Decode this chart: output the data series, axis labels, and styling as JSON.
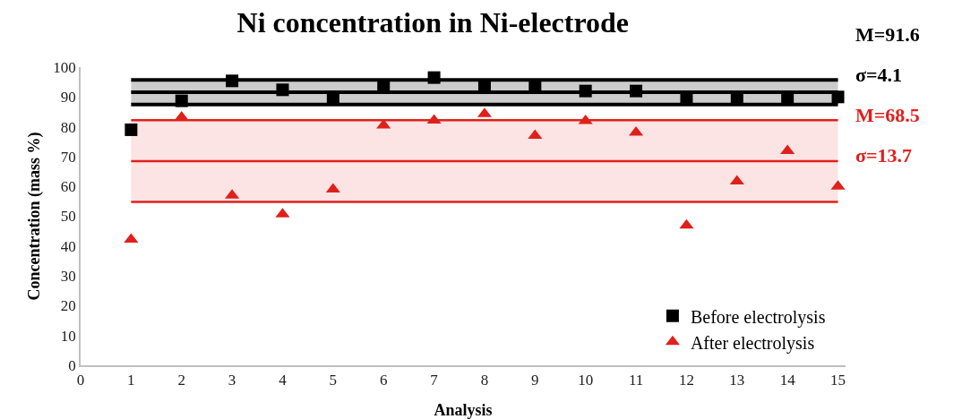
{
  "chart_data": {
    "type": "scatter",
    "title": "Ni concentration in Ni-electrode",
    "xlabel": "Analysis",
    "ylabel": "Concentration (mass %)",
    "x": [
      1,
      2,
      3,
      4,
      5,
      6,
      7,
      8,
      9,
      10,
      11,
      12,
      13,
      14,
      15
    ],
    "series": [
      {
        "name": "Before electrolysis",
        "color": "#000000",
        "marker": "square",
        "values": [
          79,
          88.7,
          95.4,
          92.4,
          89.8,
          93.7,
          96.5,
          94,
          94,
          92,
          92,
          90,
          90,
          89.7,
          90
        ]
      },
      {
        "name": "After electrolysis",
        "color": "#e0201b",
        "marker": "triangle",
        "values": [
          42.2,
          83.2,
          57,
          50.7,
          59,
          80.5,
          82.1,
          84.3,
          77,
          82,
          78.1,
          46.9,
          61.7,
          71.9,
          60
        ]
      }
    ],
    "ref_lines": [
      {
        "axis": "y",
        "value": 91.6,
        "label": "M=91.6",
        "color": "#000000"
      },
      {
        "axis": "y",
        "value": 68.5,
        "label": "M=68.5",
        "color": "#e0201b"
      },
      {
        "axis": "y",
        "value": 95.7,
        "color": "#000000"
      },
      {
        "axis": "y",
        "value": 87.5,
        "color": "#000000"
      },
      {
        "axis": "y",
        "value": 82.2,
        "color": "#e0201b"
      },
      {
        "axis": "y",
        "value": 54.8,
        "color": "#e0201b"
      }
    ],
    "bands": [
      {
        "axis": "y",
        "from": 87.5,
        "to": 95.7,
        "label": "σ=4.1",
        "color": "#000000"
      },
      {
        "axis": "y",
        "from": 54.8,
        "to": 82.2,
        "label": "σ=13.7",
        "color": "#e0201b"
      }
    ],
    "xlim": [
      0,
      15.15
    ],
    "xticks": [
      0,
      1,
      2,
      3,
      4,
      5,
      6,
      7,
      8,
      9,
      10,
      11,
      12,
      13,
      14,
      15
    ],
    "ylim": [
      0,
      100
    ],
    "yticks": [
      0,
      10,
      20,
      30,
      40,
      50,
      60,
      70,
      80,
      90,
      100
    ],
    "grid": false,
    "legend": "bottom right"
  }
}
